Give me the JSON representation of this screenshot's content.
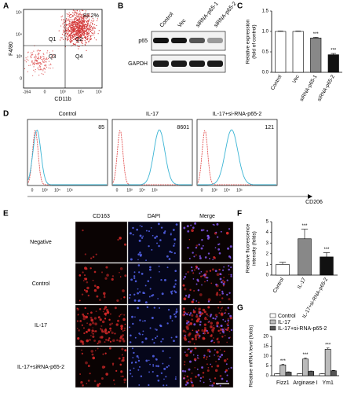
{
  "panels": {
    "A": {
      "label": "A",
      "ylabel": "F4/80",
      "xlabel": "CD11b",
      "quadrants": [
        "Q1",
        "Q2",
        "Q3",
        "Q4"
      ],
      "percent": "82.2%",
      "yticks": [
        "10⁵",
        "10⁴",
        "10³",
        "0"
      ],
      "xticks": [
        "-164",
        "0",
        "10³",
        "10⁴",
        "10⁵"
      ]
    },
    "B": {
      "label": "B",
      "lanes": [
        "Control",
        "Vec",
        "siRNA-p65-1",
        "siRNA-p65-2"
      ],
      "rows": [
        "p65",
        "GAPDH"
      ]
    },
    "C": {
      "label": "C"
    },
    "D": {
      "label": "D",
      "xlabel": "CD206",
      "plots": [
        {
          "title": "Control",
          "mfi": 85
        },
        {
          "title": "IL-17",
          "mfi": 8601
        },
        {
          "title": "IL-17+si-RNA-p65-2",
          "mfi": 121
        }
      ],
      "xticks": [
        "0",
        "10³",
        "10⁴",
        "10⁵"
      ]
    },
    "E": {
      "label": "E",
      "columns": [
        "CD163",
        "DAPI",
        "Merge"
      ],
      "rows": [
        "Negative",
        "Control",
        "IL-17",
        "IL-17+siRNA-p65-2"
      ]
    },
    "F": {
      "label": "F"
    },
    "G": {
      "label": "G"
    }
  },
  "chart_data": [
    {
      "type": "bar",
      "categories": [
        "Control",
        "Vec",
        "siRNA-p65-1",
        "siRNA-p65-2"
      ],
      "values": [
        1.0,
        1.0,
        0.84,
        0.43
      ],
      "errors": [
        0.01,
        0.01,
        0.02,
        0.03
      ],
      "colors": [
        "#ffffff",
        "#ffffff",
        "#888888",
        "#111111"
      ],
      "significance": [
        null,
        null,
        "***",
        "***"
      ],
      "ylabel": [
        "Relative expression",
        "(fold of control)"
      ],
      "ylim": [
        0,
        1.5
      ],
      "yticks": [
        {
          "value": 0,
          "label": "0.0"
        },
        {
          "value": 0.5,
          "label": "0.5"
        },
        {
          "value": 1.0,
          "label": "1.0"
        },
        {
          "value": 1.5,
          "label": "1.5"
        }
      ]
    },
    {
      "type": "bar",
      "categories": [
        "Control",
        "IL-17",
        "IL-17+si-RNA-p65-2"
      ],
      "values": [
        1.0,
        3.4,
        1.7
      ],
      "errors": [
        0.2,
        0.9,
        0.4
      ],
      "colors": [
        "#ffffff",
        "#888888",
        "#111111"
      ],
      "significance": [
        null,
        "***",
        "***"
      ],
      "ylabel": [
        "Relative fluorescence",
        "intensity (folds)"
      ],
      "ylim": [
        0,
        5
      ],
      "yticks": [
        0,
        1,
        2,
        3,
        4,
        5
      ]
    },
    {
      "type": "bar",
      "categories": [
        "Fizz1",
        "Arginase I",
        "Ym1"
      ],
      "series": [
        {
          "name": "Control",
          "color": "#ffffff",
          "values": [
            1.0,
            1.0,
            1.0
          ],
          "errors": [
            0.1,
            0.1,
            0.1
          ]
        },
        {
          "name": "IL-17",
          "color": "#bbbbbb",
          "values": [
            5.5,
            8.5,
            13.5
          ],
          "errors": [
            0.4,
            0.5,
            0.6
          ],
          "significance": [
            "***",
            "***",
            "***"
          ]
        },
        {
          "name": "IL-17+si-RNA-p65-2",
          "color": "#555555",
          "values": [
            1.8,
            2.2,
            2.5
          ],
          "errors": [
            0.2,
            0.2,
            0.2
          ]
        }
      ],
      "ylabel": [
        "Relative mRNA level (folds)"
      ],
      "ylim": [
        0,
        20
      ],
      "yticks": [
        0,
        5,
        10,
        15,
        20
      ],
      "legend": "upper left"
    }
  ]
}
